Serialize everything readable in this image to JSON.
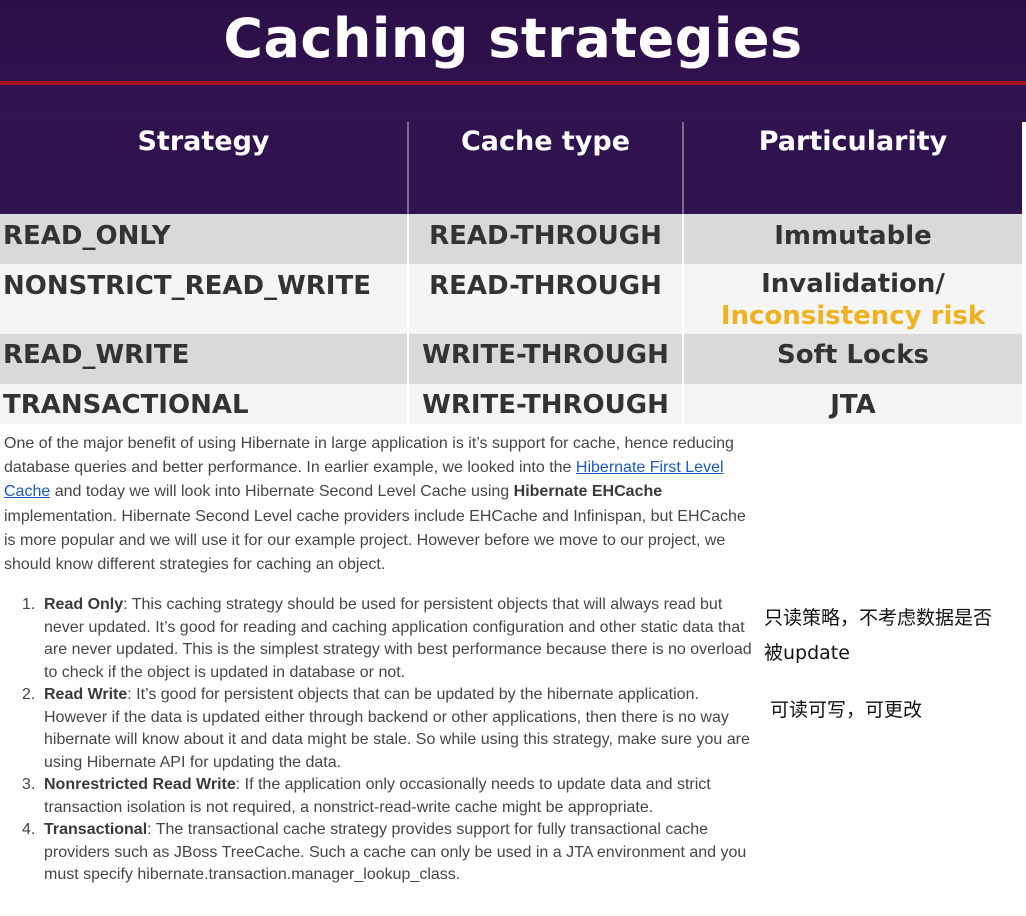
{
  "slide": {
    "title": "Caching strategies"
  },
  "table": {
    "headers": [
      "Strategy",
      "Cache type",
      "Particularity"
    ],
    "rows": [
      {
        "strategy": "READ_ONLY",
        "cache_type": "READ-THROUGH",
        "particularity": "Immutable"
      },
      {
        "strategy": "NONSTRICT_READ_WRITE",
        "cache_type": "READ-THROUGH",
        "particularity": "Invalidation/",
        "particularity_risk": "Inconsistency risk"
      },
      {
        "strategy": "READ_WRITE",
        "cache_type": "WRITE-THROUGH",
        "particularity": "Soft Locks"
      },
      {
        "strategy": "TRANSACTIONAL",
        "cache_type": "WRITE-THROUGH",
        "particularity": "JTA"
      }
    ]
  },
  "article": {
    "p1_a": "One of the major benefit of using Hibernate in large application is it’s support for cache, hence reducing database queries and better performance. In earlier example, we looked into the ",
    "link_first_level": "Hibernate First Level Cache",
    "p1_b": " and today we will look into Hibernate Second Level Cache using ",
    "bold_ehcache": "Hibernate EHCache",
    "p1_c": " implementation. Hibernate Second Level cache providers include EHCache and Infinispan, but EHCache is more popular and we will use it for our example project. However before we move to our project, we should know different strategies for caching an object."
  },
  "list": [
    {
      "num": "1.",
      "title": "Read Only",
      "text": ": This caching strategy should be used for persistent objects that will always read but never updated. It’s good for reading and caching application configuration and other static data that are never updated. This is the simplest strategy with best performance because there is no overload to check if the object is updated in database or not."
    },
    {
      "num": "2.",
      "title": "Read Write",
      "text": ": It’s good for persistent objects that can be updated by the hibernate application. However if the data is updated either through backend or other applications, then there is no way hibernate will know about it and data might be stale. So while using this strategy, make sure you are using Hibernate API for updating the data."
    },
    {
      "num": "3.",
      "title": "Nonrestricted Read Write",
      "text": ": If the application only occasionally needs to update data and strict transaction isolation is not required, a nonstrict-read-write cache might be appropriate."
    },
    {
      "num": "4.",
      "title": "Transactional",
      "text": ": The transactional cache strategy provides support for fully transactional cache providers such as JBoss TreeCache. Such a cache can only be used in a JTA environment and you must specify hibernate.transaction.manager_lookup_class."
    }
  ],
  "notes": {
    "read_only_line1": "只读策略，不考虑数据是否",
    "read_only_line2": "被update",
    "read_write": "可读可写，可更改"
  },
  "colors": {
    "header_bg": "#30124f",
    "title_rule": "#a8141e",
    "row_gray": "#d9d9d9",
    "row_white": "#f5f5f5",
    "risk_yellow": "#f0b21e",
    "link_blue": "#1a5ac8"
  }
}
